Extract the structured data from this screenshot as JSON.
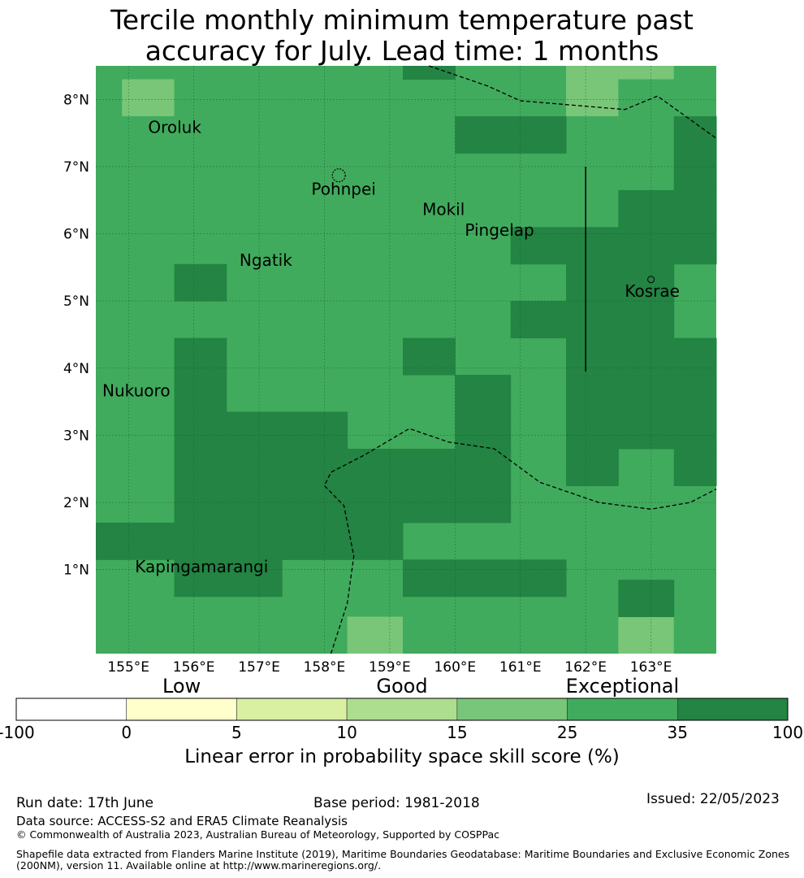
{
  "title": {
    "line1": "Tercile monthly minimum temperature past",
    "line2": "accuracy for July. Lead time: 1 months"
  },
  "map": {
    "lon_range": [
      154.5,
      164.0
    ],
    "lat_range": [
      -0.25,
      8.5
    ],
    "lon_ticks": [
      {
        "value": 155,
        "label": "155°E"
      },
      {
        "value": 156,
        "label": "156°E"
      },
      {
        "value": 157,
        "label": "157°E"
      },
      {
        "value": 158,
        "label": "158°E"
      },
      {
        "value": 159,
        "label": "159°E"
      },
      {
        "value": 160,
        "label": "160°E"
      },
      {
        "value": 161,
        "label": "161°E"
      },
      {
        "value": 162,
        "label": "162°E"
      },
      {
        "value": 163,
        "label": "163°E"
      }
    ],
    "lat_ticks": [
      {
        "value": 1,
        "label": "1°N"
      },
      {
        "value": 2,
        "label": "2°N"
      },
      {
        "value": 3,
        "label": "3°N"
      },
      {
        "value": 4,
        "label": "4°N"
      },
      {
        "value": 5,
        "label": "5°N"
      },
      {
        "value": 6,
        "label": "6°N"
      },
      {
        "value": 7,
        "label": "7°N"
      },
      {
        "value": 8,
        "label": "8°N"
      }
    ],
    "grid_lines": true,
    "color_light": "#79c679",
    "color_mid": "#41ab5d",
    "color_dark": "#238443",
    "light_cells": [
      [
        154.9,
        155.7,
        7.75,
        8.3
      ],
      [
        161.7,
        162.5,
        7.75,
        8.5
      ],
      [
        162.5,
        163.35,
        8.3,
        8.5
      ],
      [
        158.35,
        159.2,
        -0.25,
        0.3
      ],
      [
        162.5,
        163.35,
        -0.25,
        0.3
      ]
    ],
    "dark_cells": [
      [
        159.2,
        160.0,
        8.3,
        8.5
      ],
      [
        160.0,
        161.7,
        7.2,
        7.75
      ],
      [
        163.35,
        164.0,
        6.65,
        7.75
      ],
      [
        162.5,
        164.0,
        6.1,
        6.65
      ],
      [
        160.85,
        164.0,
        5.55,
        6.1
      ],
      [
        161.7,
        162.5,
        5.0,
        5.55
      ],
      [
        162.5,
        163.35,
        5.0,
        5.55
      ],
      [
        160.85,
        163.35,
        4.45,
        5.0
      ],
      [
        161.7,
        164.0,
        3.9,
        4.45
      ],
      [
        155.7,
        156.5,
        5.0,
        5.55
      ],
      [
        159.2,
        160.0,
        3.9,
        4.45
      ],
      [
        155.7,
        156.5,
        2.8,
        4.45
      ],
      [
        156.5,
        158.35,
        2.8,
        3.35
      ],
      [
        160.0,
        160.85,
        2.8,
        3.9
      ],
      [
        161.7,
        164.0,
        2.8,
        3.9
      ],
      [
        155.7,
        159.2,
        2.25,
        2.8
      ],
      [
        159.2,
        160.85,
        2.25,
        2.8
      ],
      [
        161.7,
        162.5,
        2.25,
        2.8
      ],
      [
        163.35,
        164.0,
        2.25,
        2.8
      ],
      [
        155.7,
        157.35,
        1.7,
        2.25
      ],
      [
        157.35,
        158.35,
        1.7,
        2.25
      ],
      [
        158.35,
        160.85,
        1.7,
        2.25
      ],
      [
        154.5,
        159.2,
        1.15,
        1.7
      ],
      [
        155.7,
        157.35,
        0.6,
        1.15
      ],
      [
        159.2,
        161.7,
        0.6,
        1.15
      ],
      [
        162.5,
        163.35,
        0.3,
        0.85
      ]
    ],
    "places": [
      {
        "name": "Oroluk",
        "lon": 155.3,
        "lat": 7.5
      },
      {
        "name": "Pohnpei",
        "lon": 157.8,
        "lat": 6.58
      },
      {
        "name": "Mokil",
        "lon": 159.5,
        "lat": 6.28
      },
      {
        "name": "Pingelap",
        "lon": 160.15,
        "lat": 5.97
      },
      {
        "name": "Ngatik",
        "lon": 156.7,
        "lat": 5.52
      },
      {
        "name": "Kosrae",
        "lon": 162.6,
        "lat": 5.06
      },
      {
        "name": "Nukuoro",
        "lon": 154.6,
        "lat": 3.58
      },
      {
        "name": "Kapingamarangi",
        "lon": 155.1,
        "lat": 0.96
      }
    ],
    "boundary_lines": [
      [
        [
          159.6,
          8.5
        ],
        [
          160.5,
          8.2
        ],
        [
          161.0,
          7.98
        ],
        [
          162.6,
          7.85
        ],
        [
          163.1,
          8.05
        ],
        [
          164.0,
          7.42
        ]
      ],
      [
        [
          158.1,
          -0.25
        ],
        [
          158.35,
          0.5
        ],
        [
          158.45,
          1.2
        ],
        [
          158.3,
          1.95
        ],
        [
          158.0,
          2.25
        ],
        [
          158.1,
          2.45
        ],
        [
          158.6,
          2.7
        ],
        [
          159.3,
          3.1
        ],
        [
          159.9,
          2.9
        ],
        [
          160.6,
          2.8
        ],
        [
          161.3,
          2.3
        ],
        [
          162.2,
          2.0
        ],
        [
          163.0,
          1.9
        ],
        [
          163.6,
          2.0
        ],
        [
          164.0,
          2.2
        ]
      ]
    ],
    "solid_lines": [
      [
        [
          162.0,
          7.0
        ],
        [
          162.0,
          3.95
        ]
      ]
    ]
  },
  "colorbar": {
    "categories": [
      {
        "label": "Low",
        "value": 2.5
      },
      {
        "label": "Good",
        "value": 12.5
      },
      {
        "label": "Exceptional",
        "value": 30
      }
    ],
    "boundaries": [
      -100,
      0,
      5,
      10,
      15,
      25,
      35,
      100
    ],
    "tick_labels": [
      "-100",
      "0",
      "5",
      "10",
      "15",
      "25",
      "35",
      "100"
    ],
    "colors": [
      "#ffffff",
      "#ffffcc",
      "#d9f0a3",
      "#addd8e",
      "#78c679",
      "#41ab5d",
      "#238443"
    ],
    "label": "Linear error in probability space skill score (%)"
  },
  "footer": {
    "run_date": "Run date: 17th June",
    "base_period": "Base period: 1981-2018",
    "issued": "Issued: 22/05/2023",
    "data_source": "Data source: ACCESS-S2 and ERA5 Climate Reanalysis",
    "copyright": "© Commonwealth of Australia 2023, Australian Bureau of Meteorology, Supported by COSPPac",
    "shapefile_line1": "Shapefile data extracted from Flanders Marine Institute (2019), Maritime Boundaries Geodatabase: Maritime Boundaries and Exclusive Economic Zones",
    "shapefile_line2": "(200NM), version 11. Available online at http://www.marineregions.org/."
  }
}
